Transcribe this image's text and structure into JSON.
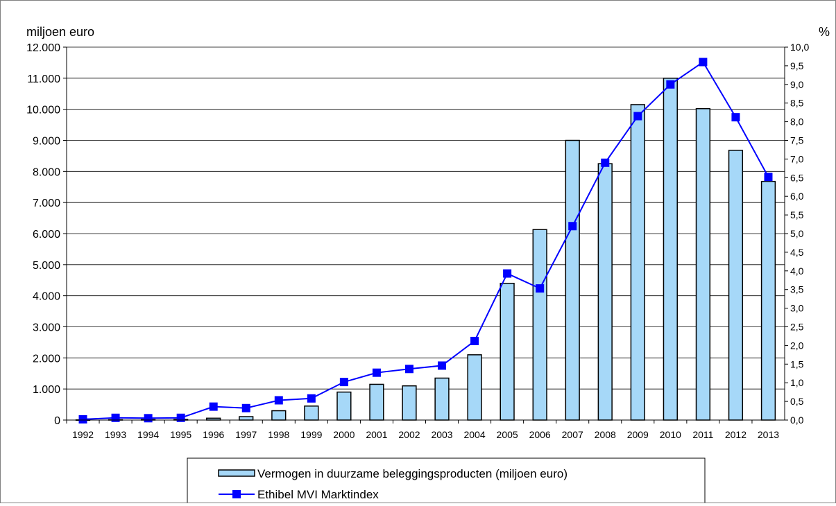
{
  "chart_data": {
    "type": "bar+line",
    "categories": [
      "1992",
      "1993",
      "1994",
      "1995",
      "1996",
      "1997",
      "1998",
      "1999",
      "2000",
      "2001",
      "2002",
      "2003",
      "2004",
      "2005",
      "2006",
      "2007",
      "2008",
      "2009",
      "2010",
      "2011",
      "2012",
      "2013"
    ],
    "y_left": {
      "label": "miljoen euro",
      "lim": [
        0,
        12000
      ],
      "ticks": [
        "0",
        "1.000",
        "2.000",
        "3.000",
        "4.000",
        "5.000",
        "6.000",
        "7.000",
        "8.000",
        "9.000",
        "10.000",
        "11.000",
        "12.000"
      ]
    },
    "y_right": {
      "label": "%",
      "lim": [
        0,
        10
      ],
      "ticks": [
        "0,0",
        "0,5",
        "1,0",
        "1,5",
        "2,0",
        "2,5",
        "3,0",
        "3,5",
        "4,0",
        "4,5",
        "5,0",
        "5,5",
        "6,0",
        "6,5",
        "7,0",
        "7,5",
        "8,0",
        "8,5",
        "9,0",
        "9,5",
        "10,0"
      ]
    },
    "series": [
      {
        "name": "Vermogen in duurzame beleggingsproducten (miljoen euro)",
        "type": "bar",
        "axis": "left",
        "color": "#a6d8f8",
        "values": [
          5,
          10,
          15,
          20,
          60,
          110,
          300,
          450,
          900,
          1150,
          1100,
          1350,
          2100,
          4400,
          6130,
          9000,
          8250,
          10150,
          11000,
          10020,
          8680,
          7680
        ]
      },
      {
        "name": "Ethibel MVI Marktindex",
        "type": "line",
        "axis": "right",
        "color": "#0000ff",
        "values": [
          0.02,
          0.06,
          0.05,
          0.06,
          0.36,
          0.32,
          0.53,
          0.58,
          1.02,
          1.27,
          1.37,
          1.46,
          2.12,
          3.93,
          3.53,
          5.2,
          6.9,
          8.15,
          9.0,
          9.6,
          8.12,
          6.52
        ]
      }
    ],
    "grid": true,
    "legend_position": "bottom-center"
  }
}
